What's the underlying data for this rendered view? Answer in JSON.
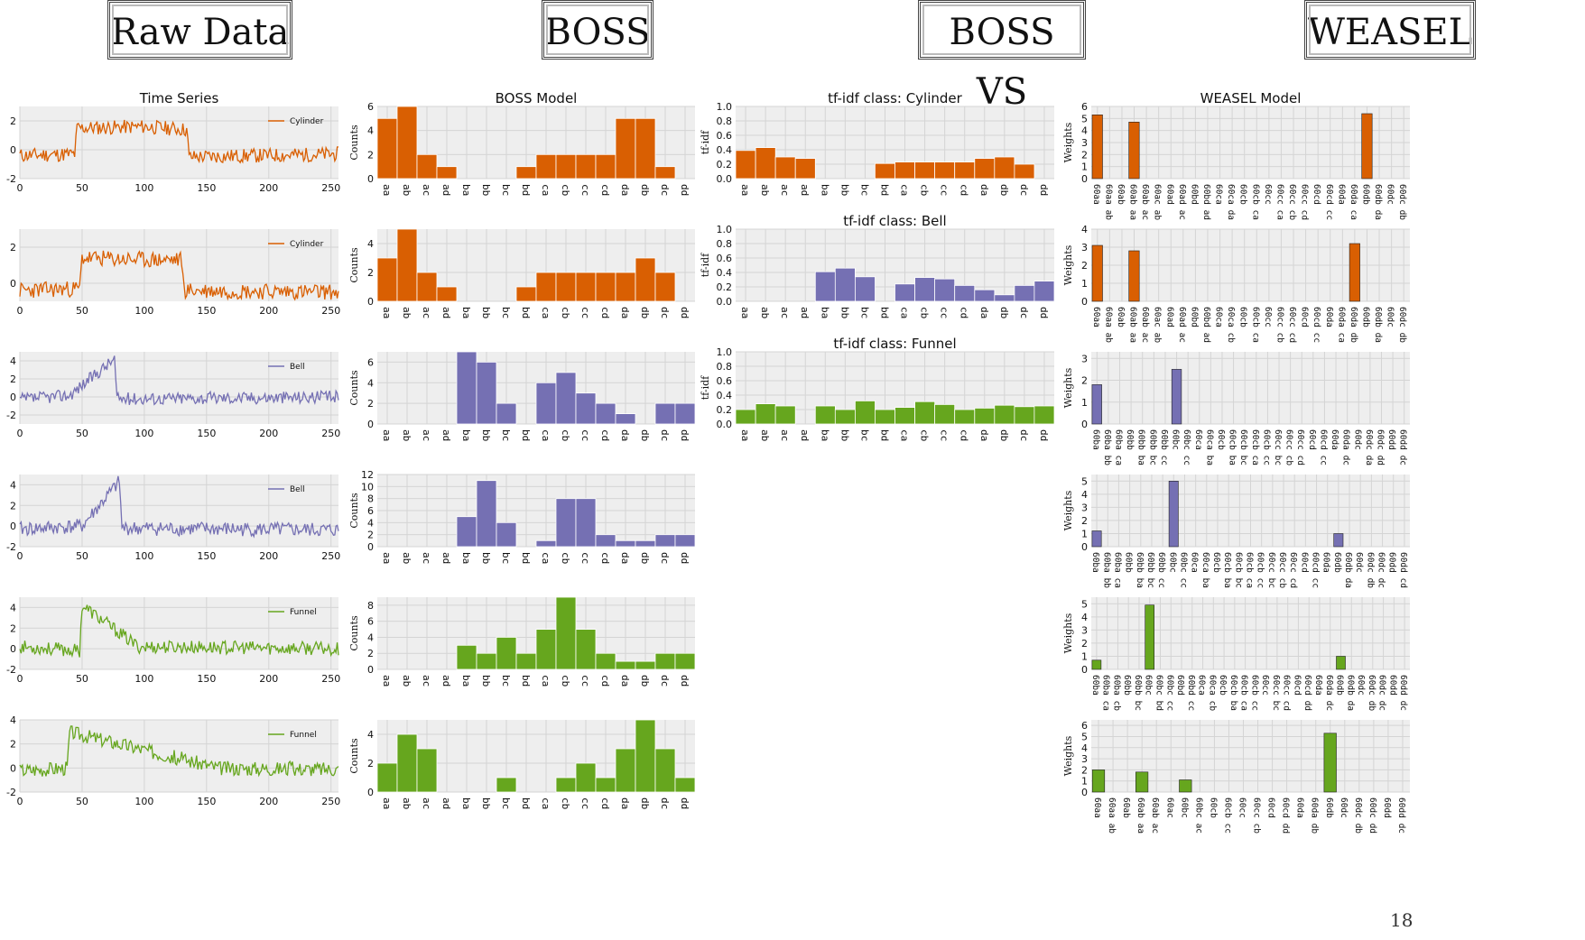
{
  "headers": [
    "Raw Data",
    "BOSS",
    "BOSS VS",
    "WEASEL"
  ],
  "page_number": "18",
  "colors": {
    "cylinder": "#d95f02",
    "bell": "#7570b3",
    "funnel": "#66a61e",
    "plot_bg": "#eeeeee",
    "grid": "#d4d4d4"
  },
  "chart_data": [
    {
      "type": "line",
      "panel": "raw",
      "title": "Time Series",
      "color_key": "cylinder",
      "series": [
        {
          "name": "Cylinder",
          "class": "cylinder"
        }
      ],
      "xlim": [
        0,
        256
      ],
      "xticks": [
        0,
        50,
        100,
        150,
        200,
        250
      ],
      "ylim": [
        -2,
        3
      ],
      "yticks": [
        -2,
        0,
        2
      ],
      "shape": [
        [
          0,
          -0.4
        ],
        [
          44,
          -0.3
        ],
        [
          46,
          1.5
        ],
        [
          100,
          1.6
        ],
        [
          134,
          1.4
        ],
        [
          136,
          -0.5
        ],
        [
          256,
          -0.3
        ]
      ],
      "noise": 0.5,
      "seed": 11
    },
    {
      "type": "line",
      "panel": "raw",
      "title": "",
      "color_key": "cylinder",
      "series": [
        {
          "name": "Cylinder",
          "class": "cylinder"
        }
      ],
      "xlim": [
        0,
        256
      ],
      "xticks": [
        0,
        50,
        100,
        150,
        200,
        250
      ],
      "ylim": [
        -1,
        3
      ],
      "yticks": [
        0,
        2
      ],
      "shape": [
        [
          0,
          -0.4
        ],
        [
          48,
          -0.3
        ],
        [
          50,
          1.4
        ],
        [
          100,
          1.3
        ],
        [
          130,
          1.3
        ],
        [
          132,
          -0.4
        ],
        [
          256,
          -0.5
        ]
      ],
      "noise": 0.45,
      "seed": 23
    },
    {
      "type": "line",
      "panel": "raw",
      "title": "",
      "color_key": "bell",
      "series": [
        {
          "name": "Bell",
          "class": "bell"
        }
      ],
      "xlim": [
        0,
        256
      ],
      "xticks": [
        0,
        50,
        100,
        150,
        200,
        250
      ],
      "ylim": [
        -3,
        5
      ],
      "yticks": [
        -2,
        0,
        2,
        4
      ],
      "shape": [
        [
          0,
          -0.3
        ],
        [
          40,
          0.2
        ],
        [
          76,
          4.2
        ],
        [
          78,
          -0.2
        ],
        [
          256,
          0
        ]
      ],
      "noise": 0.7,
      "seed": 37
    },
    {
      "type": "line",
      "panel": "raw",
      "title": "",
      "color_key": "bell",
      "series": [
        {
          "name": "Bell",
          "class": "bell"
        }
      ],
      "xlim": [
        0,
        256
      ],
      "xticks": [
        0,
        50,
        100,
        150,
        200,
        250
      ],
      "ylim": [
        -2,
        5
      ],
      "yticks": [
        -2,
        0,
        2,
        4
      ],
      "shape": [
        [
          0,
          -0.3
        ],
        [
          50,
          0
        ],
        [
          80,
          4.3
        ],
        [
          82,
          -0.2
        ],
        [
          256,
          -0.4
        ]
      ],
      "noise": 0.7,
      "seed": 41
    },
    {
      "type": "line",
      "panel": "raw",
      "title": "",
      "color_key": "funnel",
      "series": [
        {
          "name": "Funnel",
          "class": "funnel"
        }
      ],
      "xlim": [
        0,
        256
      ],
      "xticks": [
        0,
        50,
        100,
        150,
        200,
        250
      ],
      "ylim": [
        -2,
        5
      ],
      "yticks": [
        -2,
        0,
        2,
        4
      ],
      "shape": [
        [
          0,
          0.2
        ],
        [
          48,
          -0.2
        ],
        [
          50,
          4.2
        ],
        [
          95,
          0.2
        ],
        [
          256,
          0
        ]
      ],
      "noise": 0.65,
      "seed": 53
    },
    {
      "type": "line",
      "panel": "raw",
      "title": "",
      "color_key": "funnel",
      "series": [
        {
          "name": "Funnel",
          "class": "funnel"
        }
      ],
      "xlim": [
        0,
        256
      ],
      "xticks": [
        0,
        50,
        100,
        150,
        200,
        250
      ],
      "ylim": [
        -2,
        4
      ],
      "yticks": [
        -2,
        0,
        2,
        4
      ],
      "shape": [
        [
          0,
          -0.2
        ],
        [
          38,
          0
        ],
        [
          40,
          3
        ],
        [
          160,
          0
        ],
        [
          256,
          -0.1
        ]
      ],
      "noise": 0.6,
      "seed": 67
    },
    {
      "type": "bar",
      "panel": "boss",
      "title": "BOSS Model",
      "ylabel": "Counts",
      "color_key": "cylinder",
      "ylim": [
        0,
        6
      ],
      "yticks": [
        0,
        2,
        4,
        6
      ],
      "categories": [
        "aa",
        "ab",
        "ac",
        "ad",
        "ba",
        "bb",
        "bc",
        "bd",
        "ca",
        "cb",
        "cc",
        "cd",
        "da",
        "db",
        "dc",
        "dd"
      ],
      "values": [
        5,
        6,
        2,
        1,
        0,
        0,
        0,
        1,
        2,
        2,
        2,
        2,
        5,
        5,
        1,
        0
      ]
    },
    {
      "type": "bar",
      "panel": "boss",
      "title": "",
      "ylabel": "Counts",
      "color_key": "cylinder",
      "ylim": [
        0,
        5
      ],
      "yticks": [
        0,
        2,
        4
      ],
      "categories": [
        "aa",
        "ab",
        "ac",
        "ad",
        "ba",
        "bb",
        "bc",
        "bd",
        "ca",
        "cb",
        "cc",
        "cd",
        "da",
        "db",
        "dc",
        "dd"
      ],
      "values": [
        3,
        5,
        2,
        1,
        0,
        0,
        0,
        1,
        2,
        2,
        2,
        2,
        2,
        3,
        2,
        0
      ]
    },
    {
      "type": "bar",
      "panel": "boss",
      "title": "",
      "ylabel": "Counts",
      "color_key": "bell",
      "ylim": [
        0,
        7
      ],
      "yticks": [
        0,
        2,
        4,
        6
      ],
      "categories": [
        "aa",
        "ab",
        "ac",
        "ad",
        "ba",
        "bb",
        "bc",
        "bd",
        "ca",
        "cb",
        "cc",
        "cd",
        "da",
        "db",
        "dc",
        "dd"
      ],
      "values": [
        0,
        0,
        0,
        0,
        7,
        6,
        2,
        0,
        4,
        5,
        3,
        2,
        1,
        0,
        2,
        2
      ]
    },
    {
      "type": "bar",
      "panel": "boss",
      "title": "",
      "ylabel": "Counts",
      "color_key": "bell",
      "ylim": [
        0,
        12
      ],
      "yticks": [
        0,
        2,
        4,
        6,
        8,
        10,
        12
      ],
      "categories": [
        "aa",
        "ab",
        "ac",
        "ad",
        "ba",
        "bb",
        "bc",
        "bd",
        "ca",
        "cb",
        "cc",
        "cd",
        "da",
        "db",
        "dc",
        "dd"
      ],
      "values": [
        0,
        0,
        0,
        0,
        5,
        11,
        4,
        0,
        1,
        8,
        8,
        2,
        1,
        1,
        2,
        2
      ]
    },
    {
      "type": "bar",
      "panel": "boss",
      "title": "",
      "ylabel": "Counts",
      "color_key": "funnel",
      "ylim": [
        0,
        9
      ],
      "yticks": [
        0,
        2,
        4,
        6,
        8
      ],
      "categories": [
        "aa",
        "ab",
        "ac",
        "ad",
        "ba",
        "bb",
        "bc",
        "bd",
        "ca",
        "cb",
        "cc",
        "cd",
        "da",
        "db",
        "dc",
        "dd"
      ],
      "values": [
        0,
        0,
        0,
        0,
        3,
        2,
        4,
        2,
        5,
        9,
        5,
        2,
        1,
        1,
        2,
        2
      ]
    },
    {
      "type": "bar",
      "panel": "boss",
      "title": "",
      "ylabel": "Counts",
      "color_key": "funnel",
      "ylim": [
        0,
        5
      ],
      "yticks": [
        0,
        2,
        4
      ],
      "categories": [
        "aa",
        "ab",
        "ac",
        "ad",
        "ba",
        "bb",
        "bc",
        "bd",
        "ca",
        "cb",
        "cc",
        "cd",
        "da",
        "db",
        "dc",
        "dd"
      ],
      "values": [
        2,
        4,
        3,
        0,
        0,
        0,
        1,
        0,
        0,
        1,
        2,
        1,
        3,
        5,
        3,
        1
      ]
    },
    {
      "type": "bar",
      "panel": "bossvs",
      "title": "tf-idf class: Cylinder",
      "ylabel": "tf-idf",
      "color_key": "cylinder",
      "ylim": [
        0,
        1
      ],
      "yticks": [
        0.0,
        0.2,
        0.4,
        0.6,
        0.8,
        1.0
      ],
      "categories": [
        "aa",
        "ab",
        "ac",
        "ad",
        "ba",
        "bb",
        "bc",
        "bd",
        "ca",
        "cb",
        "cc",
        "cd",
        "da",
        "db",
        "dc",
        "dd"
      ],
      "values": [
        0.39,
        0.43,
        0.3,
        0.28,
        0,
        0,
        0,
        0.21,
        0.23,
        0.23,
        0.23,
        0.23,
        0.28,
        0.3,
        0.2,
        0
      ]
    },
    {
      "type": "bar",
      "panel": "bossvs",
      "title": "tf-idf class: Bell",
      "ylabel": "tf-idf",
      "color_key": "bell",
      "ylim": [
        0,
        1
      ],
      "yticks": [
        0.0,
        0.2,
        0.4,
        0.6,
        0.8,
        1.0
      ],
      "categories": [
        "aa",
        "ab",
        "ac",
        "ad",
        "ba",
        "bb",
        "bc",
        "bd",
        "ca",
        "cb",
        "cc",
        "cd",
        "da",
        "db",
        "dc",
        "dd"
      ],
      "values": [
        0,
        0,
        0,
        0,
        0.41,
        0.46,
        0.34,
        0,
        0.24,
        0.33,
        0.31,
        0.22,
        0.16,
        0.09,
        0.22,
        0.28
      ]
    },
    {
      "type": "bar",
      "panel": "bossvs",
      "title": "tf-idf class: Funnel",
      "ylabel": "tf-idf",
      "color_key": "funnel",
      "ylim": [
        0,
        1
      ],
      "yticks": [
        0.0,
        0.2,
        0.4,
        0.6,
        0.8,
        1.0
      ],
      "categories": [
        "aa",
        "ab",
        "ac",
        "ad",
        "ba",
        "bb",
        "bc",
        "bd",
        "ca",
        "cb",
        "cc",
        "cd",
        "da",
        "db",
        "dc",
        "dd"
      ],
      "values": [
        0.2,
        0.28,
        0.25,
        0,
        0.25,
        0.2,
        0.32,
        0.2,
        0.23,
        0.31,
        0.27,
        0.2,
        0.22,
        0.26,
        0.24,
        0.25
      ]
    },
    {
      "type": "bar",
      "panel": "weasel",
      "title": "WEASEL Model",
      "ylabel": "Weights",
      "color_key": "cylinder",
      "ylim": [
        0,
        6
      ],
      "yticks": [
        0,
        1,
        2,
        3,
        4,
        5,
        6
      ],
      "categories": [
        "60aa",
        "60aa ab",
        "60ab",
        "60ab aa",
        "60ab ac",
        "60ac ab",
        "60ad",
        "60ad ac",
        "60bd",
        "60bd ad",
        "60ca",
        "60ca da",
        "60cb",
        "60cb ca",
        "60cc",
        "60cc ca",
        "60cc cb",
        "60cc cd",
        "60cd",
        "60cd cc",
        "60da",
        "60da ca",
        "60db",
        "60db da",
        "60dc",
        "60dc db"
      ],
      "values": [
        5.3,
        0,
        0,
        4.7,
        0,
        0,
        0,
        0,
        0,
        0,
        0,
        0,
        0,
        0,
        0,
        0,
        0,
        0,
        0,
        0,
        0,
        0,
        5.4,
        0,
        0,
        0
      ]
    },
    {
      "type": "bar",
      "panel": "weasel",
      "title": "",
      "ylabel": "Weights",
      "color_key": "cylinder",
      "ylim": [
        0,
        4
      ],
      "yticks": [
        0,
        1,
        2,
        3,
        4
      ],
      "categories": [
        "60aa",
        "60aa ab",
        "60ab",
        "60ab aa",
        "60ab ac",
        "60ac ab",
        "60ad",
        "60ad ac",
        "60bd",
        "60bd ad",
        "60ca",
        "60ca cb",
        "60cb",
        "60cb ca",
        "60cc",
        "60cc cb",
        "60cc cd",
        "60cd",
        "60cd cc",
        "60da",
        "60da ca",
        "60da db",
        "60db",
        "60db da",
        "60dc",
        "60dc db"
      ],
      "values": [
        3.1,
        0,
        0,
        2.8,
        0,
        0,
        0,
        0,
        0,
        0,
        0,
        0,
        0,
        0,
        0,
        0,
        0,
        0,
        0,
        0,
        0,
        3.2,
        0,
        0,
        0,
        0
      ]
    },
    {
      "type": "bar",
      "panel": "weasel",
      "title": "",
      "ylabel": "Weights",
      "color_key": "bell",
      "ylim": [
        0,
        3.3
      ],
      "yticks": [
        0,
        1,
        2,
        3
      ],
      "categories": [
        "60ba",
        "60ba bb",
        "60ba ca",
        "60bb",
        "60bb ba",
        "60bb bc",
        "60bb cc",
        "60bc",
        "60bc cc",
        "60ca",
        "60ca ba",
        "60cb",
        "60cb ba",
        "60cb bc",
        "60cb ca",
        "60cb cc",
        "60cc bc",
        "60cc cb",
        "60cc cd",
        "60cd",
        "60cd cc",
        "60da",
        "60da dc",
        "60dc",
        "60dc da",
        "60dc dd",
        "60dd",
        "60dd dc"
      ],
      "values": [
        1.8,
        0,
        0,
        0,
        0,
        0,
        0,
        2.5,
        0,
        0,
        0,
        0,
        0,
        0,
        0,
        0,
        0,
        0,
        0,
        0,
        0,
        0,
        0,
        0,
        0,
        0,
        0,
        0
      ]
    },
    {
      "type": "bar",
      "panel": "weasel",
      "title": "",
      "ylabel": "Weights",
      "color_key": "bell",
      "ylim": [
        0,
        5.5
      ],
      "yticks": [
        0,
        1,
        2,
        3,
        4,
        5
      ],
      "categories": [
        "60ba",
        "60ba bb",
        "60ba ca",
        "60bb",
        "60bb ba",
        "60bb bc",
        "60bb cc",
        "60bc",
        "60bc cc",
        "60ca",
        "60ca ba",
        "60cb",
        "60cb ba",
        "60cb bc",
        "60cb ca",
        "60cb cc",
        "60cc bc",
        "60cc cb",
        "60cc cd",
        "60cd",
        "60cd cc",
        "60da",
        "60db",
        "60db da",
        "60dc",
        "60dc db",
        "60dc dc",
        "60dd",
        "60dd cd"
      ],
      "values": [
        1.2,
        0,
        0,
        0,
        0,
        0,
        0,
        5,
        0,
        0,
        0,
        0,
        0,
        0,
        0,
        0,
        0,
        0,
        0,
        0,
        0,
        0,
        1,
        0,
        0,
        0,
        0,
        0,
        0
      ]
    },
    {
      "type": "bar",
      "panel": "weasel",
      "title": "",
      "ylabel": "Weights",
      "color_key": "funnel",
      "ylim": [
        0,
        5.5
      ],
      "yticks": [
        0,
        1,
        2,
        3,
        4,
        5
      ],
      "categories": [
        "60ba",
        "60ba ca",
        "60ba cb",
        "60bb",
        "60bb bc",
        "60bc",
        "60bc bd",
        "60bc cc",
        "60bd",
        "60bd cc",
        "60ca",
        "60ca cb",
        "60cb",
        "60cb ba",
        "60cb ca",
        "60cb cc",
        "60cc",
        "60cc bc",
        "60cc cd",
        "60cd",
        "60cd dd",
        "60da",
        "60da dc",
        "60db",
        "60db da",
        "60dc",
        "60dc db",
        "60dc dc",
        "60dd",
        "60dd dc"
      ],
      "values": [
        0.7,
        0,
        0,
        0,
        0,
        4.9,
        0,
        0,
        0,
        0,
        0,
        0,
        0,
        0,
        0,
        0,
        0,
        0,
        0,
        0,
        0,
        0,
        0,
        1,
        0,
        0,
        0,
        0,
        0,
        0
      ]
    },
    {
      "type": "bar",
      "panel": "weasel",
      "title": "",
      "ylabel": "Weights",
      "color_key": "funnel",
      "ylim": [
        0,
        6.5
      ],
      "yticks": [
        0,
        1,
        2,
        3,
        4,
        5,
        6
      ],
      "categories": [
        "60aa",
        "60aa ab",
        "60ab",
        "60ab aa",
        "60ab ac",
        "60ac",
        "60bc",
        "60bc ac",
        "60cb",
        "60cb cc",
        "60cc",
        "60cc cb",
        "60cd",
        "60cd dd",
        "60da",
        "60da db",
        "60db",
        "60dc",
        "60dc db",
        "60dc dd",
        "60dd",
        "60dd dc"
      ],
      "values": [
        2,
        0,
        0,
        1.8,
        0,
        0,
        1.1,
        0,
        0,
        0,
        0,
        0,
        0,
        0,
        0,
        0,
        5.3,
        0,
        0,
        0,
        0,
        0
      ]
    }
  ]
}
